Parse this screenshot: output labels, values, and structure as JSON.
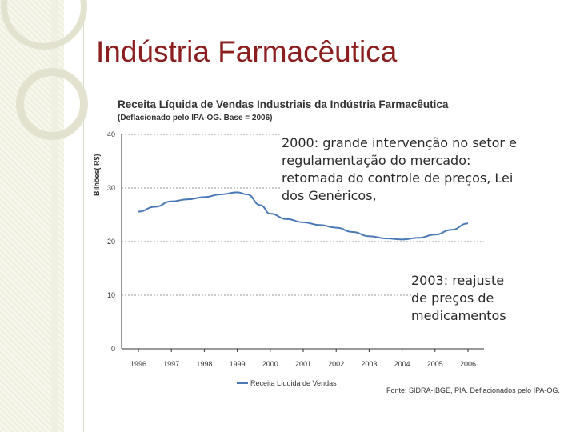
{
  "slide": {
    "title": "Indústria Farmacêutica"
  },
  "chart_data": {
    "type": "line",
    "title": "Receita Líquida de Vendas Industriais da Indústria Farmacêutica",
    "subtitle": "(Deflacionado pelo IPA-OG. Base = 2006)",
    "ylabel": "Bilhões( R$)",
    "xlabel": "",
    "ylim": [
      0,
      40
    ],
    "yticks": [
      0,
      10,
      20,
      30,
      40
    ],
    "categories": [
      "1996",
      "1997",
      "1998",
      "1999",
      "2000",
      "2001",
      "2002",
      "2003",
      "2004",
      "2005",
      "2006"
    ],
    "series": [
      {
        "name": "Receita Líquida de Vendas",
        "color": "#4a7ab5",
        "x": [
          1996,
          1996.5,
          1997,
          1997.5,
          1998,
          1998.5,
          1999,
          1999.3,
          1999.7,
          2000,
          2000.5,
          2001,
          2001.5,
          2002,
          2002.5,
          2003,
          2003.5,
          2004,
          2004.5,
          2005,
          2005.5,
          2006
        ],
        "y": [
          25.6,
          26.5,
          27.5,
          27.9,
          28.3,
          28.8,
          29.2,
          28.8,
          26.8,
          25.2,
          24.2,
          23.6,
          23.1,
          22.6,
          21.8,
          21.0,
          20.6,
          20.4,
          20.7,
          21.3,
          22.2,
          23.4
        ]
      }
    ],
    "source": "Fonte: SIDRA-IBGE, PIA. Deflacionados pelo IPA-OG."
  },
  "annotations": {
    "note_2000": "2000: grande intervenção no setor e regulamentação do mercado: retomada do controle de preços, Lei dos Genéricos,",
    "note_2003": "2003: reajuste de preços de medicamentos"
  },
  "colors": {
    "title": "#8b1f1f",
    "line": "#4a7ab5",
    "grid": "#9a9a9a"
  }
}
